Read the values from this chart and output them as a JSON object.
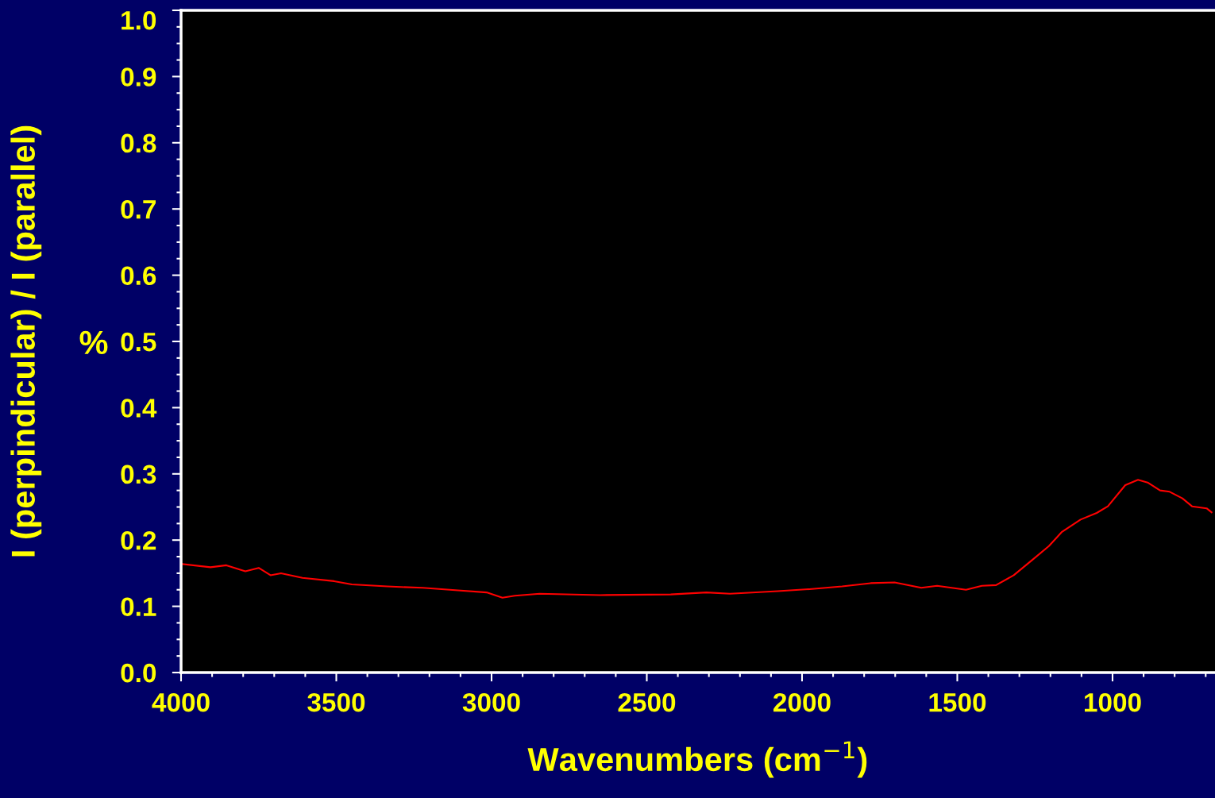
{
  "chart_data": {
    "type": "line",
    "xlabel": "Wavenumbers (cm$^{−1}$)",
    "ylabel": "I (perpindicular) / I (parallel)",
    "annotations": [
      "%"
    ],
    "series": [
      {
        "color": "#ff0000",
        "x": [
          3997,
          3905,
          3854,
          3793,
          3750,
          3712,
          3678,
          3609,
          3507,
          3450,
          3336,
          3222,
          3108,
          3016,
          2965,
          2925,
          2845,
          2651,
          2423,
          2308,
          2232,
          2078,
          1976,
          1871,
          1779,
          1702,
          1616,
          1565,
          1472,
          1421,
          1375,
          1318,
          1256,
          1205,
          1164,
          1103,
          1051,
          1015,
          959,
          918,
          887,
          847,
          816,
          775,
          744,
          697,
          681
        ],
        "values": [
          0.164,
          0.159,
          0.162,
          0.153,
          0.158,
          0.147,
          0.15,
          0.143,
          0.138,
          0.133,
          0.13,
          0.128,
          0.124,
          0.121,
          0.113,
          0.116,
          0.119,
          0.117,
          0.118,
          0.121,
          0.119,
          0.123,
          0.126,
          0.13,
          0.135,
          0.136,
          0.128,
          0.131,
          0.125,
          0.131,
          0.132,
          0.147,
          0.171,
          0.191,
          0.212,
          0.231,
          0.241,
          0.251,
          0.283,
          0.291,
          0.287,
          0.275,
          0.273,
          0.263,
          0.251,
          0.248,
          0.242
        ]
      }
    ],
    "xlim": [
      4000,
      670
    ],
    "xticks": [
      4000,
      3500,
      3000,
      2500,
      2000,
      1500,
      1000
    ],
    "ylim": [
      0,
      1.0
    ],
    "yticks": [
      {
        "value": 0,
        "label": "0.0"
      },
      0.1,
      0.2,
      0.3,
      0.4,
      0.5,
      0.6,
      0.7,
      0.8,
      0.9,
      {
        "value": 1.0,
        "label": "1.0"
      }
    ],
    "grid": false,
    "legend": false,
    "marker": "none",
    "line_style": "solid"
  }
}
